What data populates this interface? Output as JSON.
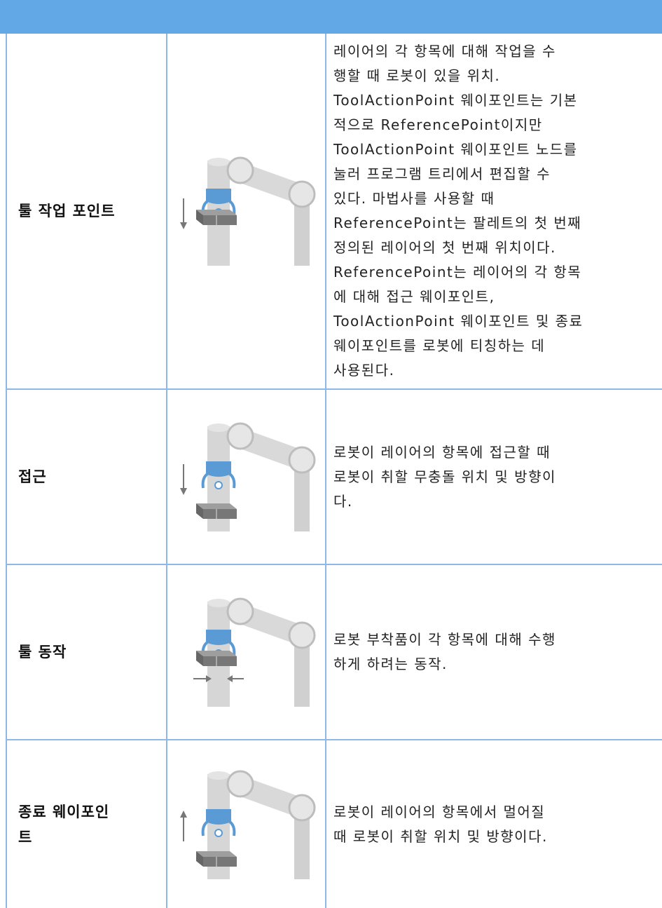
{
  "table": {
    "rows": [
      {
        "term": [
          "툴 작업 포인트"
        ],
        "description": [
          "레이어의 각 항목에 대해 작업을 수",
          "행할 때 로봇이 있을 위치.",
          "ToolActionPoint 웨이포인트는 기본",
          "적으로 ReferencePoint이지만",
          "ToolActionPoint 웨이포인트 노드를",
          "눌러 프로그램 트리에서 편집할 수",
          "있다. 마법사를 사용할 때",
          "ReferencePoint는 팔레트의 첫 번째",
          "정의된 레이어의 첫 번째 위치이다.",
          "ReferencePoint는 레이어의 각 항목",
          "에 대해 접근 웨이포인트,",
          "ToolActionPoint 웨이포인트 및 종료",
          "웨이포인트를 로봇에 티칭하는 데",
          "사용된다."
        ]
      },
      {
        "term": [
          "접근"
        ],
        "description": [
          "로봇이 레이어의 항목에 접근할 때",
          "로봇이 취할 무충돌 위치 및 방향이",
          "다."
        ]
      },
      {
        "term": [
          "툴 동작"
        ],
        "description": [
          "로봇 부착품이 각 항목에 대해 수행",
          "하게 하려는 동작."
        ]
      },
      {
        "term": [
          "종료 웨이포인",
          "트"
        ],
        "description": [
          "로봇이 레이어의 항목에서 멀어질",
          "때 로봇이 취할 위치 및 방향이다."
        ]
      }
    ]
  }
}
